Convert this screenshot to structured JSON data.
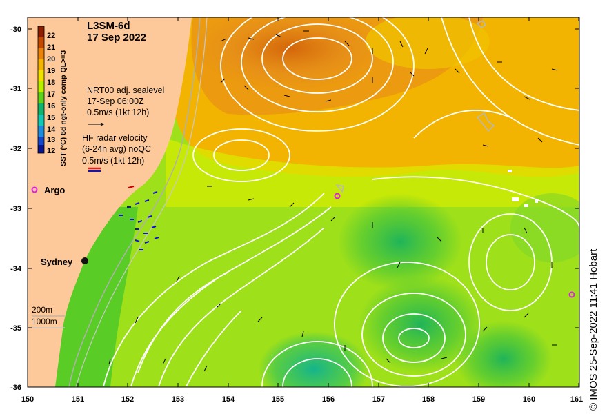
{
  "map": {
    "title": "L3SM-6d",
    "date": "17 Sep 2022",
    "colorbar_label": "SST (°C) 6d ngt-only comp QL>=3",
    "colorbar_ticks": [
      "22",
      "21",
      "20",
      "19",
      "18",
      "17",
      "16",
      "15",
      "14",
      "13",
      "12"
    ],
    "colorbar_colors": [
      "#8b1e00",
      "#c24a00",
      "#e8830c",
      "#f2b400",
      "#f0e200",
      "#b8f000",
      "#5fd21e",
      "#10b46e",
      "#12c8b4",
      "#1e8cdc",
      "#1446c8",
      "#0a148c"
    ],
    "x_ticks": [
      "150",
      "151",
      "152",
      "153",
      "154",
      "155",
      "156",
      "157",
      "158",
      "159",
      "160",
      "161"
    ],
    "y_ticks": [
      "-30",
      "-31",
      "-32",
      "-33",
      "-34",
      "-35",
      "-36"
    ],
    "legend_sealevel": {
      "line1": "NRT00 adj. sealevel",
      "line2": "17-Sep 06:00Z",
      "line3": "0.5m/s (1kt 12h)"
    },
    "legend_radar": {
      "line1": "HF radar velocity",
      "line2": "(6-24h avg) noQC",
      "line3": "0.5m/s (1kt 12h)"
    },
    "argo_label": "Argo",
    "city_label": "Sydney",
    "isobath_200": "200m",
    "isobath_1000": "1000m",
    "credit": "© IMOS 25-Sep-2022 11:41 Hobart",
    "argo_color": "#e020e0",
    "land_color": "#fdc89a",
    "contour_color": "#ffffff"
  }
}
